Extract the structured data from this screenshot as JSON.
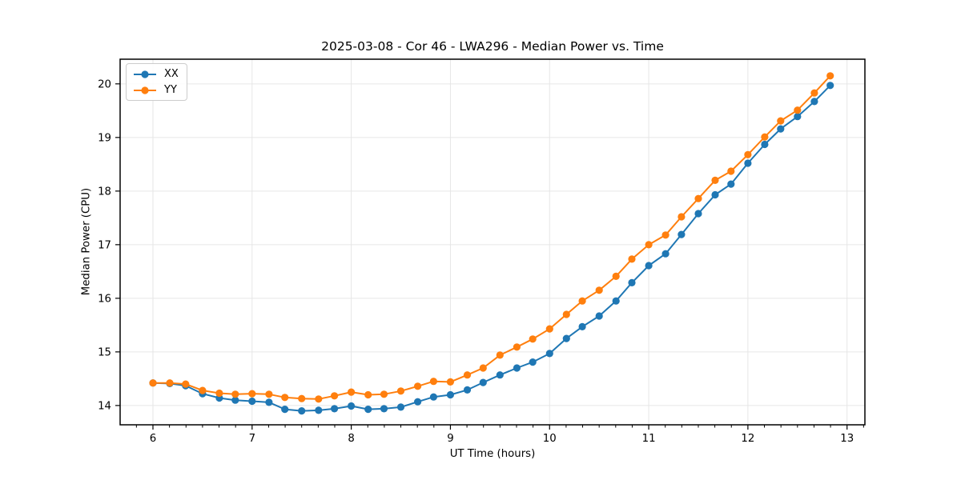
{
  "title": "2025-03-08 - Cor 46 - LWA296 - Median Power vs. Time",
  "chart_data": {
    "type": "line",
    "title": "2025-03-08 - Cor 46 - LWA296 - Median Power vs. Time",
    "xlabel": "UT Time (hours)",
    "ylabel": "Median Power (CPU)",
    "xlim": [
      5.669,
      13.18
    ],
    "ylim": [
      13.64,
      20.46
    ],
    "x_ticks": [
      6,
      7,
      8,
      9,
      10,
      11,
      12,
      13
    ],
    "y_ticks": [
      14,
      15,
      16,
      17,
      18,
      19,
      20
    ],
    "x_minor_step": 0.1666667,
    "grid": true,
    "grid_color": "#e6e6e6",
    "legend_position": "upper-left",
    "x": [
      6.0,
      6.17,
      6.33,
      6.5,
      6.67,
      6.83,
      7.0,
      7.17,
      7.33,
      7.5,
      7.67,
      7.83,
      8.0,
      8.17,
      8.33,
      8.5,
      8.67,
      8.83,
      9.0,
      9.17,
      9.33,
      9.5,
      9.67,
      9.83,
      10.0,
      10.17,
      10.33,
      10.5,
      10.67,
      10.83,
      11.0,
      11.17,
      11.33,
      11.5,
      11.67,
      11.83,
      12.0,
      12.17,
      12.33,
      12.5,
      12.67,
      12.83
    ],
    "series": [
      {
        "name": "XX",
        "color": "#1f77b4",
        "values": [
          14.42,
          14.41,
          14.37,
          14.22,
          14.14,
          14.1,
          14.08,
          14.06,
          13.93,
          13.9,
          13.91,
          13.94,
          13.99,
          13.93,
          13.94,
          13.97,
          14.07,
          14.16,
          14.2,
          14.29,
          14.43,
          14.57,
          14.7,
          14.81,
          14.97,
          15.25,
          15.47,
          15.67,
          15.95,
          16.29,
          16.61,
          16.83,
          17.19,
          17.58,
          17.93,
          18.13,
          18.52,
          18.87,
          19.16,
          19.39,
          19.67,
          19.97
        ]
      },
      {
        "name": "YY",
        "color": "#ff7f0e",
        "values": [
          14.42,
          14.42,
          14.4,
          14.28,
          14.23,
          14.21,
          14.22,
          14.21,
          14.15,
          14.13,
          14.12,
          14.18,
          14.25,
          14.2,
          14.21,
          14.27,
          14.36,
          14.45,
          14.44,
          14.57,
          14.7,
          14.94,
          15.09,
          15.24,
          15.43,
          15.7,
          15.95,
          16.15,
          16.41,
          16.73,
          17.0,
          17.18,
          17.52,
          17.86,
          18.2,
          18.37,
          18.68,
          19.01,
          19.31,
          19.51,
          19.83,
          20.15
        ]
      }
    ]
  }
}
